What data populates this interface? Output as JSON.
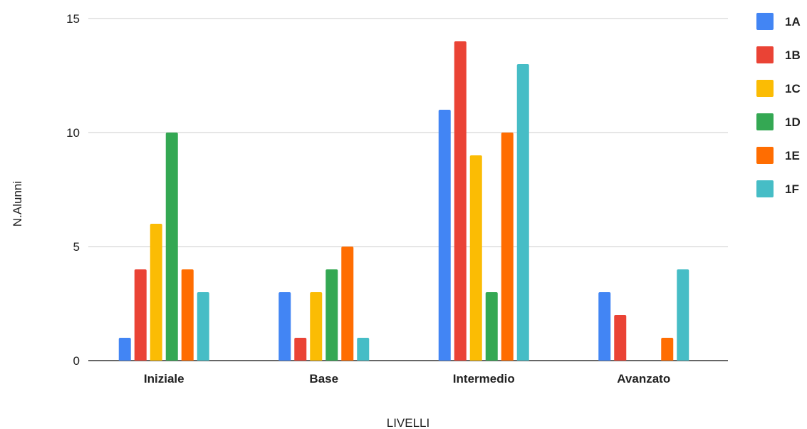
{
  "chart_data": {
    "type": "bar",
    "categories": [
      "Iniziale",
      "Base",
      "Intermedio",
      "Avanzato"
    ],
    "series": [
      {
        "name": "1A",
        "color": "#4285f4",
        "values": [
          1,
          3,
          11,
          3
        ]
      },
      {
        "name": "1B",
        "color": "#ea4335",
        "values": [
          4,
          1,
          14,
          2
        ]
      },
      {
        "name": "1C",
        "color": "#fbbc04",
        "values": [
          6,
          3,
          9,
          0
        ]
      },
      {
        "name": "1D",
        "color": "#34a853",
        "values": [
          10,
          4,
          3,
          0
        ]
      },
      {
        "name": "1E",
        "color": "#ff6d01",
        "values": [
          4,
          5,
          10,
          1
        ]
      },
      {
        "name": "1F",
        "color": "#46bdc6",
        "values": [
          3,
          1,
          13,
          4
        ]
      }
    ],
    "xlabel": "LIVELLI",
    "ylabel": "N.Alunni",
    "ylim": [
      0,
      15
    ],
    "yticks": [
      "0",
      "5",
      "10",
      "15"
    ],
    "grid": true,
    "legend_position": "right"
  }
}
